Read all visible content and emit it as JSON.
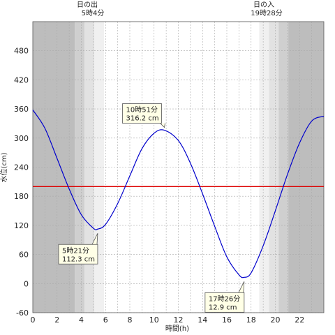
{
  "chart_data": {
    "type": "line",
    "xlabel": "時間(h)",
    "ylabel": "水位(cm)",
    "xlim": [
      0,
      24
    ],
    "ylim": [
      -60,
      540
    ],
    "xticks": [
      0,
      2,
      4,
      6,
      8,
      10,
      12,
      14,
      16,
      18,
      20,
      22
    ],
    "yticks": [
      -60,
      0,
      60,
      120,
      180,
      240,
      300,
      360,
      420,
      480
    ],
    "reference_line": {
      "y": 200,
      "color": "#dd0000"
    },
    "sun": {
      "sunrise_label": "日の出",
      "sunrise_time": "5時4分",
      "sunset_label": "日の入",
      "sunset_time": "19時28分",
      "sunrise_h": 5.07,
      "sunset_h": 19.47
    },
    "series": [
      {
        "color": "#0000cc",
        "x": [
          0,
          1,
          2,
          3,
          4,
          5,
          5.35,
          6,
          7,
          8,
          9,
          10,
          10.85,
          12,
          13,
          14,
          15,
          16,
          17,
          17.43,
          18,
          19,
          20,
          21,
          22,
          23,
          24
        ],
        "y": [
          358,
          320,
          258,
          195,
          142,
          114,
          112.3,
          122,
          165,
          222,
          278,
          310,
          316.2,
          295,
          248,
          185,
          118,
          55,
          18,
          12.9,
          22,
          78,
          150,
          225,
          290,
          335,
          345
        ]
      }
    ],
    "annotations": [
      {
        "line1": "10時51分",
        "line2": "316.2 cm",
        "x": 10.85,
        "y": 316.2,
        "placement": "above"
      },
      {
        "line1": "5時21分",
        "line2": "112.3 cm",
        "x": 5.35,
        "y": 112.3,
        "placement": "below"
      },
      {
        "line1": "17時26分",
        "line2": "12.9 cm",
        "x": 17.43,
        "y": 12.9,
        "placement": "below"
      }
    ],
    "grid": true
  }
}
